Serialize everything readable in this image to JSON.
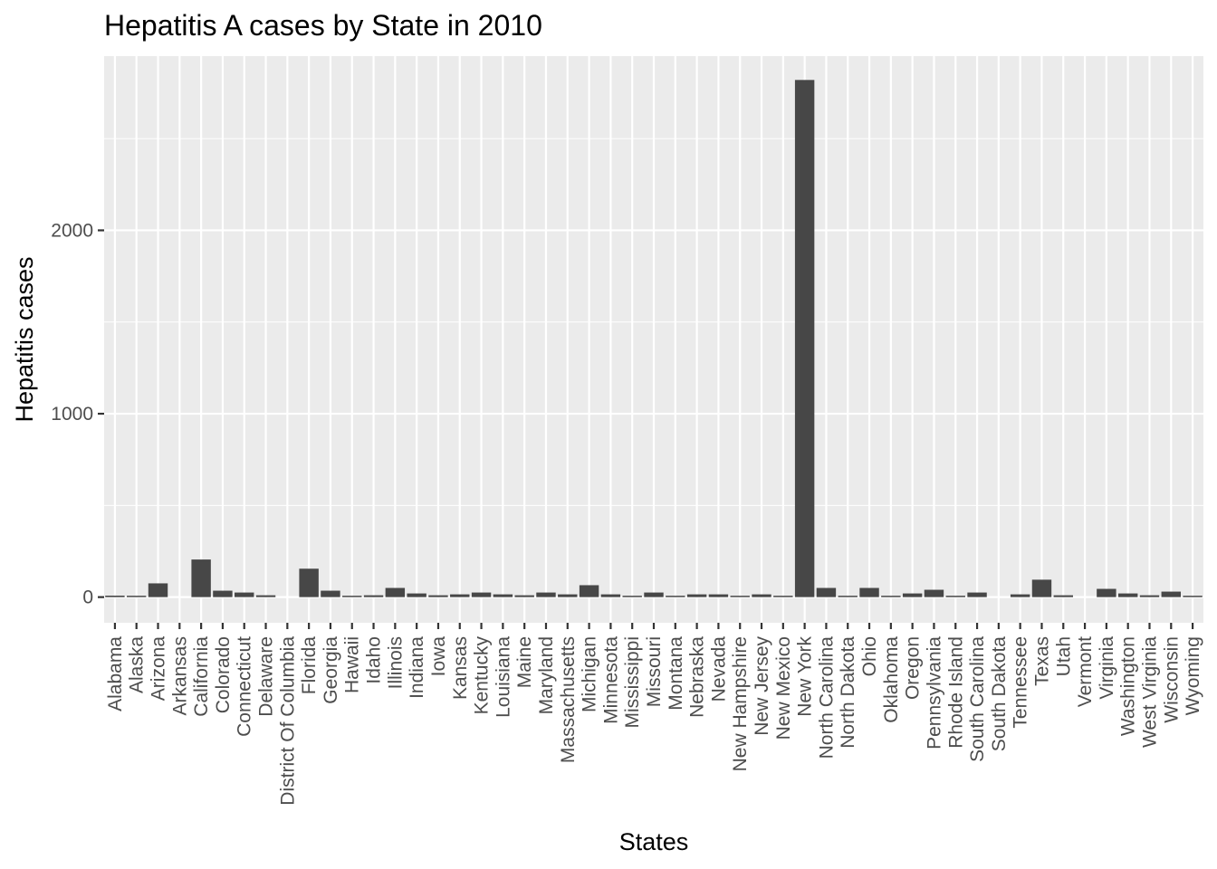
{
  "chart_data": {
    "type": "bar",
    "title": "Hepatitis A cases by State in 2010",
    "xlabel": "States",
    "ylabel": "Hepatitis cases",
    "ylim": [
      -140,
      2950
    ],
    "yticks": [
      0,
      1000,
      2000
    ],
    "grid": true,
    "colors": {
      "bar": "#474747",
      "panel": "#ebebeb",
      "grid": "#ffffff",
      "tick": "#333333"
    },
    "categories": [
      "Alabama",
      "Alaska",
      "Arizona",
      "Arkansas",
      "California",
      "Colorado",
      "Connecticut",
      "Delaware",
      "District Of Columbia",
      "Florida",
      "Georgia",
      "Hawaii",
      "Idaho",
      "Illinois",
      "Indiana",
      "Iowa",
      "Kansas",
      "Kentucky",
      "Louisiana",
      "Maine",
      "Maryland",
      "Massachusetts",
      "Michigan",
      "Minnesota",
      "Mississippi",
      "Missouri",
      "Montana",
      "Nebraska",
      "Nevada",
      "New Hampshire",
      "New Jersey",
      "New Mexico",
      "New York",
      "North Carolina",
      "North Dakota",
      "Ohio",
      "Oklahoma",
      "Oregon",
      "Pennsylvania",
      "Rhode Island",
      "South Carolina",
      "South Dakota",
      "Tennessee",
      "Texas",
      "Utah",
      "Vermont",
      "Virginia",
      "Washington",
      "West Virginia",
      "Wisconsin",
      "Wyoming"
    ],
    "values": [
      8,
      3,
      75,
      0,
      205,
      35,
      25,
      10,
      0,
      155,
      35,
      5,
      10,
      50,
      20,
      10,
      15,
      25,
      15,
      10,
      25,
      15,
      65,
      15,
      5,
      25,
      5,
      15,
      15,
      5,
      15,
      5,
      2820,
      50,
      5,
      50,
      5,
      20,
      40,
      5,
      25,
      0,
      15,
      95,
      10,
      0,
      45,
      20,
      10,
      30,
      5
    ]
  }
}
